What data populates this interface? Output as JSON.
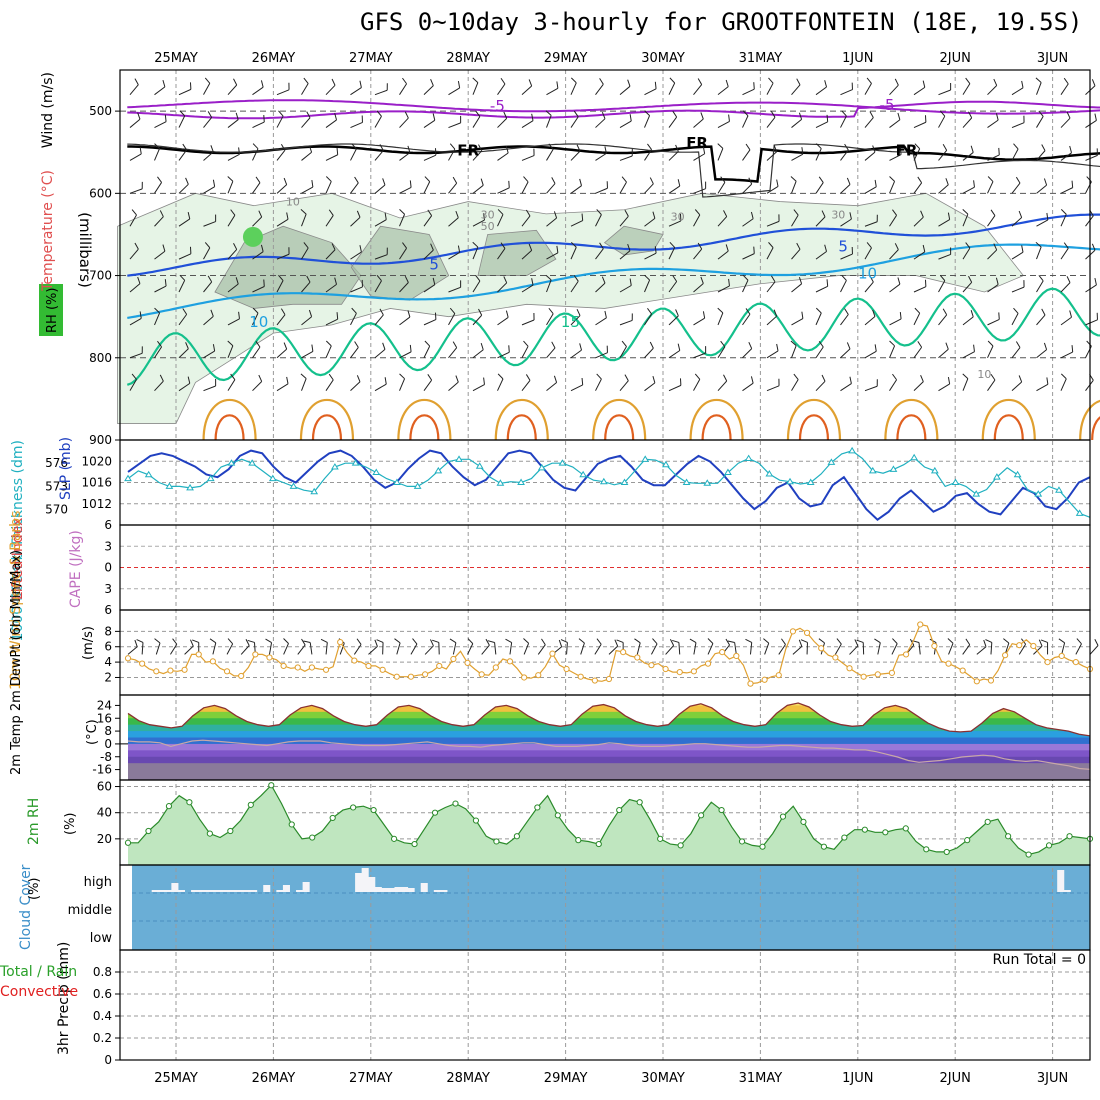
{
  "title": "GFS 0~10day 3-hourly for GROOTFONTEIN (18E, 19.5S)",
  "colors": {
    "purple": "#9a1fc8",
    "blue": "#2050d8",
    "cyan": "#1ea0e0",
    "teal": "#14c08c",
    "orange": "#e0a030",
    "darkorange": "#e06020",
    "rh_fill": "#dcefdc",
    "rh_fill2": "#a8c0a8",
    "sky": "#6aaed6",
    "grid": "#aaaaaa"
  },
  "chart_data": {
    "type": "meteogram",
    "dates": [
      "25MAY",
      "26MAY",
      "27MAY",
      "28MAY",
      "29MAY",
      "30MAY",
      "31MAY",
      "1JUN",
      "2JUN",
      "3JUN"
    ],
    "panels": [
      {
        "id": "upper",
        "type": "contour",
        "axis_title": "(millibars)",
        "legend": [
          "Wind (m/s)",
          "Temperature (°C)",
          "RH (%)"
        ],
        "ylim": [
          450,
          900
        ],
        "yticks": [
          500,
          600,
          700,
          800,
          900
        ],
        "contour_labels": [
          {
            "text": "-5",
            "x": 3.3,
            "p": 495,
            "c": "purple"
          },
          {
            "text": "-5",
            "x": 7.3,
            "p": 494,
            "c": "purple"
          },
          {
            "text": "FR",
            "x": 3.0,
            "p": 549,
            "c": "black"
          },
          {
            "text": "FR",
            "x": 5.35,
            "p": 540,
            "c": "black"
          },
          {
            "text": "FR",
            "x": 7.5,
            "p": 549,
            "c": "black"
          },
          {
            "text": "5",
            "x": 2.65,
            "p": 688,
            "c": "blue"
          },
          {
            "text": "5",
            "x": 6.85,
            "p": 666,
            "c": "blue"
          },
          {
            "text": "10",
            "x": 0.85,
            "p": 758,
            "c": "cyan"
          },
          {
            "text": "10",
            "x": 7.1,
            "p": 699,
            "c": "cyan"
          },
          {
            "text": "15",
            "x": 4.05,
            "p": 758,
            "c": "teal"
          },
          {
            "text": "10",
            "x": 1.2,
            "p": 610,
            "c": "gray"
          },
          {
            "text": "30",
            "x": 3.2,
            "p": 626,
            "c": "gray"
          },
          {
            "text": "50",
            "x": 3.2,
            "p": 640,
            "c": "gray"
          },
          {
            "text": "30",
            "x": 5.15,
            "p": 628,
            "c": "gray"
          },
          {
            "text": "30",
            "x": 6.8,
            "p": 626,
            "c": "gray"
          },
          {
            "text": "10",
            "x": 8.3,
            "p": 820,
            "c": "gray"
          }
        ]
      },
      {
        "id": "slp",
        "type": "line",
        "ylabel": "1000-500mb Thickness (dm)",
        "ylabel2": "SLP (mb)",
        "yticks_left": [
          570,
          573,
          576
        ],
        "yticks_right": [
          1012,
          1016,
          1020
        ],
        "series": [
          {
            "name": "SLP (mb)",
            "color": "#2040c0",
            "ylim": [
              1008,
              1024
            ],
            "values": [
              1018,
              1019.5,
              1021,
              1021.5,
              1021,
              1020,
              1019,
              1017.5,
              1017,
              1018.5,
              1021,
              1022,
              1021.5,
              1019,
              1017,
              1016,
              1018,
              1020,
              1021.5,
              1022,
              1021,
              1019,
              1016.5,
              1015,
              1016,
              1018.5,
              1020.5,
              1022,
              1021.5,
              1019,
              1017,
              1015.5,
              1016.5,
              1019,
              1021.5,
              1022,
              1021.5,
              1019,
              1016.5,
              1015,
              1014.5,
              1017,
              1019.5,
              1020.5,
              1021,
              1019,
              1016.5,
              1015.5,
              1015.5,
              1017.5,
              1019.5,
              1021,
              1020,
              1018,
              1015.5,
              1013,
              1011,
              1012.5,
              1015,
              1016,
              1013,
              1011.5,
              1012,
              1015.5,
              1017,
              1014,
              1011,
              1009,
              1010.5,
              1013,
              1014.5,
              1012.5,
              1010.5,
              1011.5,
              1013.5,
              1014,
              1012,
              1010.5,
              1010,
              1012.5,
              1015,
              1014,
              1011.5,
              1011,
              1013,
              1016,
              1017
            ]
          },
          {
            "name": "1000-500mb Thickness (dm)",
            "color": "#20b0c0",
            "ylim": [
              568,
              579
            ],
            "values": [
              574,
              575,
              574.5,
              573.5,
              573,
              573,
              572.8,
              573,
              574,
              575.5,
              576,
              576.5,
              576,
              575,
              574,
              573.5,
              573,
              572.5,
              572.3,
              574,
              575.5,
              576,
              576,
              575.5,
              574.8,
              574,
              573.5,
              573,
              573,
              573.8,
              575,
              576.2,
              576.5,
              576.5,
              575.6,
              574.2,
              573.4,
              573.6,
              573.5,
              574,
              575.4,
              576,
              576,
              575.5,
              574.5,
              573.8,
              573.6,
              573.2,
              573.5,
              575,
              576.5,
              576.4,
              575.8,
              574.4,
              573.5,
              573.4,
              573.4,
              573.4,
              574.8,
              576,
              576.6,
              576,
              574.6,
              573.8,
              573.6,
              573.3,
              573.5,
              574.6,
              576.1,
              577.2,
              577.6,
              576.6,
              575,
              574.7,
              575.2,
              575.8,
              576.7,
              575.5,
              575,
              573,
              573.5,
              573,
              572,
              572.6,
              574.2,
              575.4,
              574.5,
              572.5,
              572,
              573,
              572.5,
              571,
              569.5,
              569
            ]
          }
        ]
      },
      {
        "id": "cape",
        "type": "line",
        "ylabel": "Lifted Index",
        "ylabel2": "CAPE (J/kg)",
        "ylim": [
          -6,
          6
        ],
        "yticks": [
          "6",
          "3",
          "0",
          "3",
          "6"
        ],
        "series": []
      },
      {
        "id": "wind10m",
        "type": "line",
        "ylabel": "10m Wind Speed & Barbs",
        "unit": "(m/s)",
        "ylim": [
          0.5,
          10
        ],
        "yticks": [
          2,
          4,
          6,
          8
        ],
        "series": [
          {
            "name": "10m Wind Speed",
            "color": "#e0a030",
            "values": [
              4.5,
              4.3,
              3.8,
              3.1,
              2.8,
              2.5,
              2.9,
              2.8,
              3.0,
              5.0,
              5.0,
              4.0,
              4.1,
              3.2,
              2.8,
              2.2,
              2.2,
              3.3,
              5.0,
              5.0,
              4.6,
              4.3,
              3.5,
              3.2,
              3.3,
              2.8,
              3.3,
              3.1,
              3.0,
              3.4,
              6.6,
              5.2,
              4.2,
              4.0,
              3.5,
              3.5,
              3.0,
              2.5,
              2.1,
              2.1,
              2.1,
              2.3,
              2.4,
              2.8,
              3.5,
              3.1,
              4.4,
              5.4,
              3.9,
              3.1,
              2.4,
              2.3,
              3.3,
              4.4,
              4.1,
              3.2,
              2.0,
              1.9,
              2.3,
              3.4,
              5.1,
              3.6,
              3.1,
              2.6,
              2.1,
              1.8,
              1.6,
              1.5,
              1.8,
              5.5,
              5.3,
              4.8,
              4.6,
              3.9,
              3.6,
              3.8,
              3.1,
              2.7,
              2.7,
              2.6,
              2.8,
              3.5,
              3.8,
              5.1,
              5.3,
              4.4,
              4.8,
              3.6,
              1.2,
              1.3,
              1.7,
              2.1,
              2.3,
              5.7,
              8.0,
              8.4,
              7.8,
              6.7,
              5.8,
              4.9,
              4.6,
              3.9,
              3.2,
              2.6,
              2.1,
              2.3,
              2.4,
              2.5,
              2.6,
              4.9,
              5.0,
              6.7,
              8.9,
              8.7,
              6.1,
              4.1,
              3.8,
              3.4,
              2.9,
              2.2,
              1.5,
              1.8,
              1.6,
              2.9,
              4.9,
              6.4,
              6.2,
              6.9,
              6.1,
              4.9,
              4.0,
              4.6,
              4.8,
              4.3,
              4.0,
              3.5,
              3.1
            ]
          }
        ]
      },
      {
        "id": "temp",
        "type": "area",
        "ylabel": "2m Temp 2m DewPt (6hr Min/Max)",
        "unit": "(°C)",
        "ylim": [
          -20,
          28
        ],
        "yticks": [
          -16,
          -8,
          0,
          8,
          16,
          24
        ],
        "series": [
          {
            "name": "2m Temp",
            "values": [
              19,
              14.5,
              12,
              11,
              10,
              11,
              17.5,
              22.5,
              24,
              22,
              17.5,
              14,
              12,
              11,
              12,
              18,
              22.5,
              24,
              22,
              17.5,
              14,
              12,
              11,
              12,
              18,
              23,
              24,
              22,
              17.5,
              14,
              12,
              11,
              12,
              18,
              23,
              24,
              22,
              17.5,
              14,
              12,
              11,
              12,
              18.5,
              23.5,
              24.5,
              22.5,
              17.5,
              14,
              12,
              11,
              12,
              18.5,
              23.5,
              25,
              22.5,
              17.5,
              14,
              12,
              11,
              12,
              19,
              24,
              25.5,
              23,
              18,
              14,
              12,
              11,
              11.5,
              18,
              22.5,
              24,
              22,
              17.5,
              13,
              10,
              8,
              7.5,
              8,
              13,
              19,
              22,
              20,
              16,
              12,
              10,
              9,
              8,
              6,
              5
            ]
          },
          {
            "name": "2m DewPt",
            "values": [
              2,
              1.5,
              1.5,
              1,
              -1,
              0.5,
              2,
              2.5,
              2,
              1.5,
              1,
              0.5,
              0,
              -0.5,
              0.5,
              1.5,
              2,
              2,
              2,
              1,
              0.5,
              0,
              -0.5,
              -0.5,
              -0.5,
              0,
              0.5,
              1,
              1.5,
              0.5,
              -0.5,
              -1,
              -1,
              -1.5,
              -0.5,
              0,
              0.5,
              1,
              1,
              0,
              -1,
              -1,
              -1,
              -0.5,
              0,
              1,
              0.5,
              -0.5,
              -1,
              -1,
              -1,
              -0.5,
              0,
              0.5,
              0.5,
              0,
              -0.5,
              -1,
              -1.5,
              -1.5,
              -1,
              -0.5,
              -0.5,
              -1,
              -1.5,
              -2,
              -2,
              -2.5,
              -3,
              -3,
              -4,
              -5.5,
              -7,
              -9,
              -10,
              -9.5,
              -9,
              -8,
              -7,
              -6.5,
              -6,
              -6.5,
              -8,
              -9,
              -9.5,
              -9,
              -10,
              -11,
              -12,
              -13.5,
              -14
            ]
          }
        ]
      },
      {
        "id": "rh",
        "type": "area",
        "ylabel": "2m RH",
        "unit": "(%)",
        "ylim": [
          0,
          65
        ],
        "yticks": [
          20,
          40,
          60
        ],
        "series": [
          {
            "name": "2m RH",
            "color": "#2a8a2a",
            "values": [
              17,
              17,
              26,
              33,
              45,
              53,
              48,
              35,
              24,
              21,
              26,
              34,
              46,
              53,
              61,
              47,
              31,
              20,
              21,
              26,
              36,
              42,
              44,
              45,
              42,
              31,
              20,
              17,
              16,
              28,
              40,
              44,
              47,
              43,
              34,
              22,
              18,
              16,
              22,
              33,
              44,
              53,
              38,
              27,
              19,
              18,
              16,
              30,
              42,
              50,
              48,
              35,
              20,
              16,
              15,
              24,
              38,
              48,
              42,
              29,
              18,
              15,
              14,
              24,
              37,
              45,
              33,
              20,
              14,
              12,
              21,
              27,
              27,
              25,
              25,
              27,
              28,
              18,
              12,
              10,
              10,
              13,
              19,
              26,
              33,
              35,
              22,
              13,
              8,
              10,
              15,
              17,
              22,
              21,
              20
            ]
          }
        ]
      },
      {
        "id": "cloud",
        "type": "bar",
        "ylabel": "Cloud Cover",
        "unit": "(%)",
        "ytick_labels": [
          "high",
          "middle",
          "low"
        ],
        "series": [
          {
            "name": "high cloud",
            "values": [
              0,
              0,
              0,
              2,
              2,
              2,
              9,
              2,
              0,
              2,
              2,
              2,
              2,
              2,
              2,
              2,
              2,
              2,
              2,
              0,
              7,
              0,
              2,
              7,
              0,
              2,
              10,
              0,
              0,
              0,
              0,
              0,
              0,
              0,
              19,
              24,
              15,
              5,
              4,
              4,
              5,
              5,
              4,
              0,
              9,
              0,
              2,
              2,
              0,
              0,
              0,
              0,
              0,
              0,
              0,
              0,
              0,
              0,
              0,
              0,
              0,
              0,
              0,
              0,
              0,
              0,
              0,
              0,
              0,
              0,
              0,
              0,
              0,
              0,
              0,
              0,
              0,
              0,
              0,
              0,
              0,
              0,
              0,
              0,
              0,
              0,
              0,
              0,
              0,
              0,
              0,
              0,
              0,
              0,
              0,
              0,
              0,
              0,
              0,
              0,
              0,
              0,
              0,
              0,
              0,
              0,
              0,
              0,
              0,
              0,
              0,
              0,
              0,
              0,
              0,
              0,
              0,
              0,
              0,
              0,
              0,
              0,
              0,
              0,
              0,
              0,
              0,
              0,
              0,
              0,
              0,
              0,
              0,
              0,
              0,
              0,
              0,
              0,
              0,
              0,
              0,
              22,
              2,
              0,
              0,
              0
            ]
          }
        ]
      },
      {
        "id": "precip",
        "type": "bar",
        "ylabel": "3hr Precip (mm)",
        "legend": [
          "Total / Rain",
          "Convective"
        ],
        "annotation": "Run Total = 0",
        "ylim": [
          0,
          1
        ],
        "yticks": [
          "0",
          "0.2",
          "0.4",
          "0.6",
          "0.8"
        ],
        "series": []
      }
    ]
  }
}
